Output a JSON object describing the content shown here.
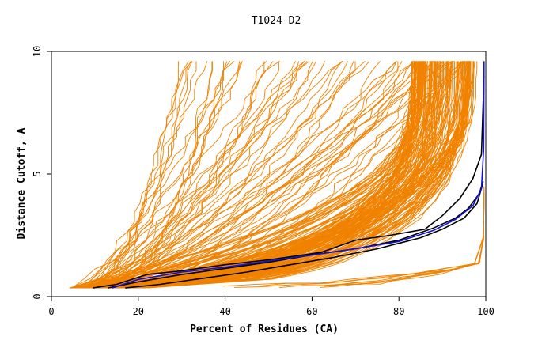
{
  "chart_data": {
    "type": "line",
    "title": "T1024-D2",
    "xlabel": "Percent of Residues (CA)",
    "ylabel": "Distance Cutoff, A",
    "xlim": [
      0,
      100
    ],
    "ylim": [
      0,
      10
    ],
    "x_ticks": [
      0,
      20,
      40,
      60,
      80,
      100
    ],
    "y_ticks": [
      0,
      5,
      10
    ],
    "grid": false,
    "legend": "none",
    "colors": {
      "models": "#f08200",
      "highlight_black": "#000000",
      "highlight_blue": "#1010e0"
    },
    "highlighted_series": [
      {
        "color": "#000000",
        "x": [
          9.5,
          15,
          22,
          30,
          40,
          50,
          62,
          70,
          78,
          86,
          90,
          94,
          97,
          99,
          99.6
        ],
        "y": [
          0.35,
          0.5,
          0.9,
          1.05,
          1.3,
          1.5,
          1.8,
          2.3,
          2.5,
          2.75,
          3.3,
          4.0,
          4.8,
          5.8,
          9.0
        ]
      },
      {
        "color": "#000000",
        "x": [
          13,
          20,
          30,
          40,
          50,
          60,
          70,
          80,
          88,
          93,
          96,
          98.5,
          99.4
        ],
        "y": [
          0.35,
          0.6,
          0.9,
          1.15,
          1.4,
          1.7,
          1.95,
          2.3,
          2.8,
          3.2,
          3.6,
          4.2,
          4.7
        ]
      },
      {
        "color": "#000000",
        "x": [
          17,
          25,
          35,
          45,
          55,
          65,
          75,
          85,
          90,
          95,
          98,
          99.3
        ],
        "y": [
          0.35,
          0.5,
          0.75,
          1.0,
          1.3,
          1.6,
          1.95,
          2.4,
          2.75,
          3.2,
          3.8,
          4.6
        ]
      },
      {
        "color": "#1010e0",
        "x": [
          14,
          20,
          30,
          40,
          50,
          60,
          70,
          80,
          88,
          93,
          97,
          99,
          99.5,
          99.6
        ],
        "y": [
          0.35,
          0.7,
          1.0,
          1.2,
          1.45,
          1.7,
          1.95,
          2.25,
          2.7,
          3.15,
          3.7,
          4.4,
          6.0,
          9.6
        ]
      }
    ],
    "model_count": 220,
    "model_curve_family": {
      "start_x_range": [
        4,
        22
      ],
      "start_y": 0.35,
      "approx_percent_at_2A": [
        10,
        85
      ],
      "approx_percent_at_5A": [
        18,
        97
      ],
      "y_max": 9.6
    }
  }
}
